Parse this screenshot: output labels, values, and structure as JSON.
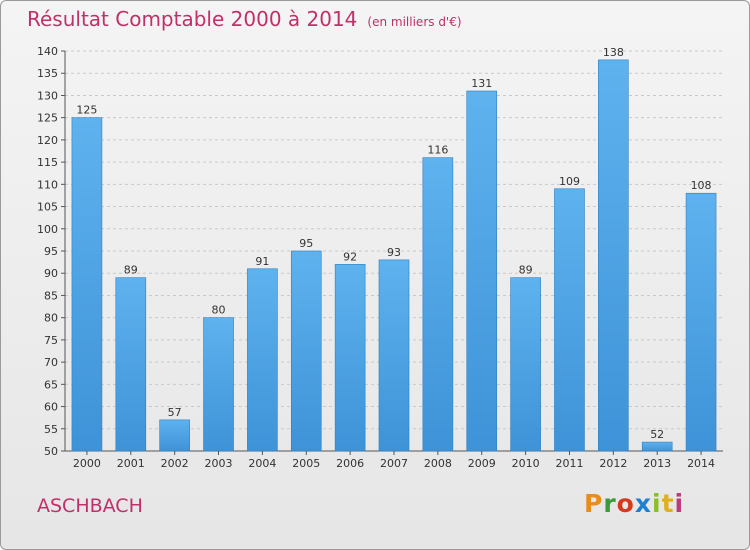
{
  "chart_data": {
    "type": "bar",
    "title": "Résultat Comptable 2000 à 2014",
    "subtitle": "(en milliers d'€)",
    "categories": [
      "2000",
      "2001",
      "2002",
      "2003",
      "2004",
      "2005",
      "2006",
      "2007",
      "2008",
      "2009",
      "2010",
      "2011",
      "2012",
      "2013",
      "2014"
    ],
    "values": [
      125,
      89,
      57,
      80,
      91,
      95,
      92,
      93,
      116,
      131,
      89,
      109,
      138,
      52,
      108
    ],
    "ylim": [
      50,
      140
    ],
    "ytick_step": 5,
    "grid": true,
    "xlabel": "",
    "ylabel": "",
    "bar_color": "#3e93d8"
  },
  "footer": {
    "place": "ASCHBACH",
    "logo_letters": [
      "P",
      "r",
      "o",
      "x",
      "i",
      "t",
      "i"
    ],
    "logo_colors": [
      "#e98c1a",
      "#3c9a3a",
      "#d63a1c",
      "#1f7fd0",
      "#8cbf26",
      "#e0b020",
      "#c03a7a"
    ]
  }
}
